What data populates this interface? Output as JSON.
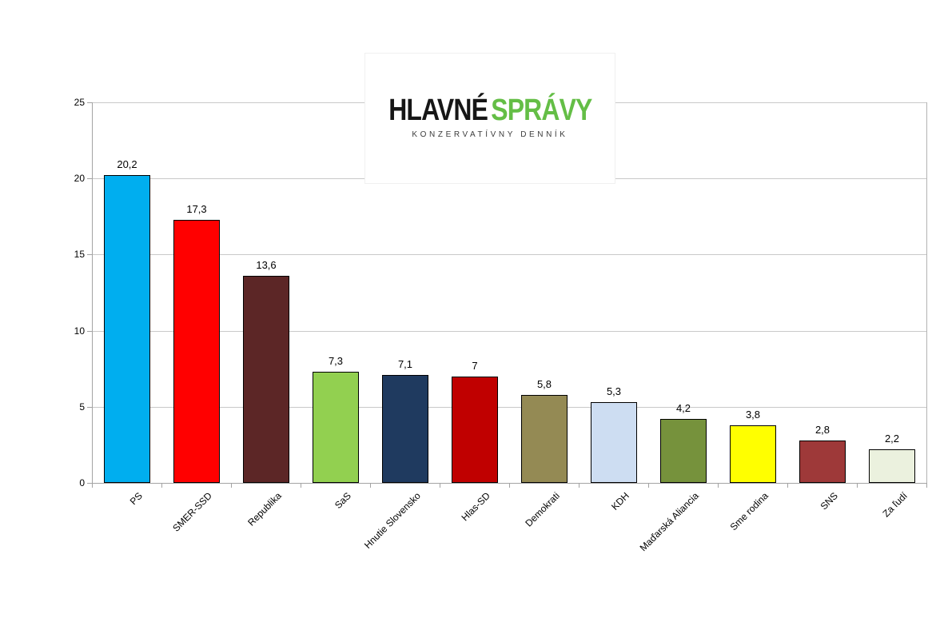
{
  "logo": {
    "title_black": "HLAVNÉ",
    "title_green": "SPRÁVY",
    "subtitle": "KONZERVATÍVNY DENNÍK",
    "green_color": "#64BE46"
  },
  "chart_data": {
    "type": "bar",
    "categories": [
      "PS",
      "SMER-SSD",
      "Republika",
      "SaS",
      "Hnutie Slovensko",
      "Hlas-SD",
      "Demokrati",
      "KDH",
      "Maďarská Aliancia",
      "Sme rodina",
      "SNS",
      "Za ľudí"
    ],
    "values": [
      20.2,
      17.3,
      13.6,
      7.3,
      7.1,
      7,
      5.8,
      5.3,
      4.2,
      3.8,
      2.8,
      2.2
    ],
    "value_labels": [
      "20,2",
      "17,3",
      "13,6",
      "7,3",
      "7,1",
      "7",
      "5,8",
      "5,3",
      "4,2",
      "3,8",
      "2,8",
      "2,2"
    ],
    "bar_colors": [
      "#00AEEF",
      "#FF0000",
      "#5C2626",
      "#92D050",
      "#1F3A5F",
      "#C00000",
      "#948A54",
      "#CDDDF2",
      "#76923C",
      "#FFFF00",
      "#9E3939",
      "#EBF1DE"
    ],
    "bar_border_color": "#000000",
    "title": "",
    "xlabel": "",
    "ylabel": "",
    "ylim": [
      0,
      25
    ],
    "ytick_step": 5,
    "ytick_labels": [
      "0",
      "5",
      "10",
      "15",
      "20",
      "25"
    ],
    "grid": true,
    "gridline_color": "#c9c9c9",
    "legend": false
  }
}
